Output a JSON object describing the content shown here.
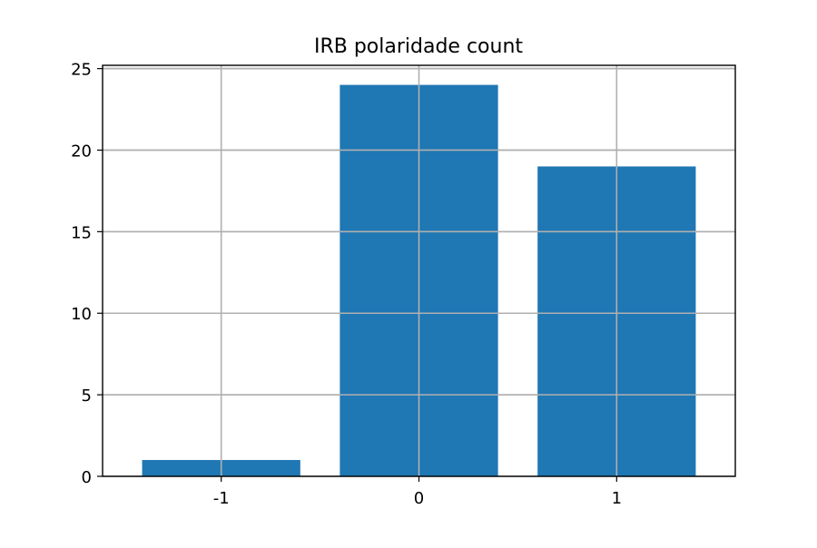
{
  "chart_data": {
    "type": "bar",
    "title": "IRB polaridade count",
    "xlabel": "",
    "ylabel": "",
    "categories": [
      "-1",
      "0",
      "1"
    ],
    "values": [
      1,
      24,
      19
    ],
    "ylim": [
      0,
      25.2
    ],
    "yticks": [
      0,
      5,
      10,
      15,
      20,
      25
    ],
    "grid": true,
    "legend": "none",
    "bar_color": "#1f77b4",
    "grid_color": "#b0b0b0"
  }
}
